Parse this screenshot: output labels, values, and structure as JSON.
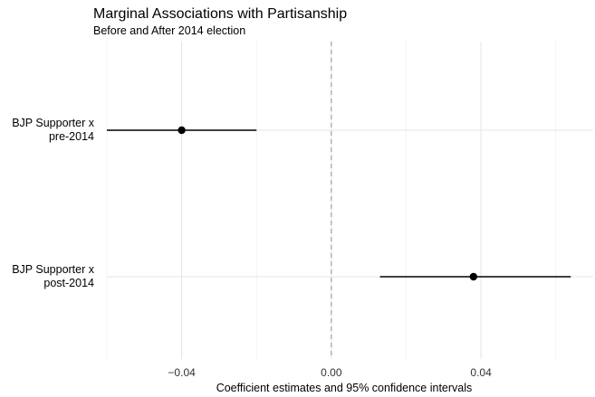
{
  "chart_data": {
    "type": "scatter",
    "title": "Marginal Associations with Partisanship",
    "subtitle": "Before and After 2014 election",
    "xlabel": "Coefficient estimates and 95% confidence intervals",
    "ylabel": "",
    "xlim": [
      -0.06,
      0.07
    ],
    "x_ticks": [
      -0.04,
      0.0,
      0.04
    ],
    "x_tick_labels": [
      "−0.04",
      "0.00",
      "0.04"
    ],
    "reference_line": 0.0,
    "grid": true,
    "points": [
      {
        "label_lines": [
          "BJP Supporter x",
          "pre-2014"
        ],
        "estimate": -0.04,
        "ci_low": -0.06,
        "ci_high": -0.02
      },
      {
        "label_lines": [
          "BJP Supporter x",
          "post-2014"
        ],
        "estimate": 0.038,
        "ci_low": 0.013,
        "ci_high": 0.064
      }
    ]
  }
}
